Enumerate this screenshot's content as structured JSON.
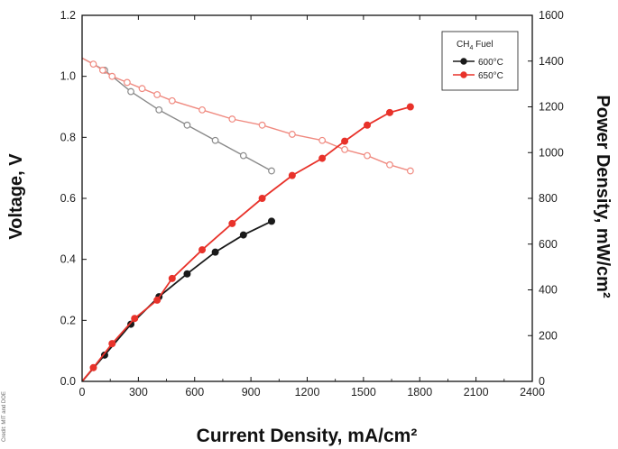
{
  "side_credit": "Credit: MIT and DOE",
  "chart_data": {
    "type": "line",
    "xlabel": "Current Density, mA/cm²",
    "ylabel_left": "Voltage, V",
    "ylabel_right": "Power Density, mW/cm²",
    "xlim": [
      0,
      2400
    ],
    "ylim_left": [
      0.0,
      1.2
    ],
    "ylim_right": [
      0,
      1600
    ],
    "x_ticks": [
      "0",
      "300",
      "600",
      "900",
      "1200",
      "1500",
      "1800",
      "2100",
      "2400"
    ],
    "y_left_ticks": [
      "0.0",
      "0.2",
      "0.4",
      "0.6",
      "0.8",
      "1.0",
      "1.2"
    ],
    "y_right_ticks": [
      "0",
      "200",
      "400",
      "600",
      "800",
      "1000",
      "1200",
      "1400",
      "1600"
    ],
    "legend": {
      "title": "CH4 Fuel",
      "title_main": "CH",
      "title_sub": "4",
      "title_rest": " Fuel",
      "entries": [
        "600°C",
        "650°C"
      ],
      "placement": "top-right"
    },
    "colors": {
      "600": "#1a1a1a",
      "600_voltage": "#8a8a8a",
      "650": "#e8322a",
      "650_voltage": "#f08a80"
    },
    "series": [
      {
        "name": "600°C",
        "axis": "left",
        "kind": "voltage",
        "x": [
          0,
          120,
          260,
          410,
          560,
          710,
          860,
          1010
        ],
        "y": [
          1.06,
          1.02,
          0.95,
          0.89,
          0.84,
          0.79,
          0.74,
          0.69
        ]
      },
      {
        "name": "650°C",
        "axis": "left",
        "kind": "voltage",
        "x": [
          0,
          60,
          110,
          160,
          240,
          320,
          400,
          480,
          640,
          800,
          960,
          1120,
          1280,
          1400,
          1520,
          1640,
          1750
        ],
        "y": [
          1.06,
          1.04,
          1.02,
          1.0,
          0.98,
          0.96,
          0.94,
          0.92,
          0.89,
          0.86,
          0.84,
          0.81,
          0.79,
          0.76,
          0.74,
          0.71,
          0.69
        ]
      },
      {
        "name": "600°C",
        "axis": "right",
        "kind": "power",
        "x": [
          0,
          120,
          260,
          410,
          560,
          710,
          860,
          1010
        ],
        "y": [
          0,
          115,
          250,
          370,
          470,
          565,
          640,
          700
        ]
      },
      {
        "name": "650°C",
        "axis": "right",
        "kind": "power",
        "x": [
          0,
          60,
          160,
          280,
          400,
          480,
          640,
          800,
          960,
          1120,
          1280,
          1400,
          1520,
          1640,
          1750
        ],
        "y": [
          0,
          60,
          165,
          275,
          355,
          450,
          575,
          690,
          800,
          900,
          975,
          1050,
          1120,
          1175,
          1200
        ]
      }
    ]
  }
}
